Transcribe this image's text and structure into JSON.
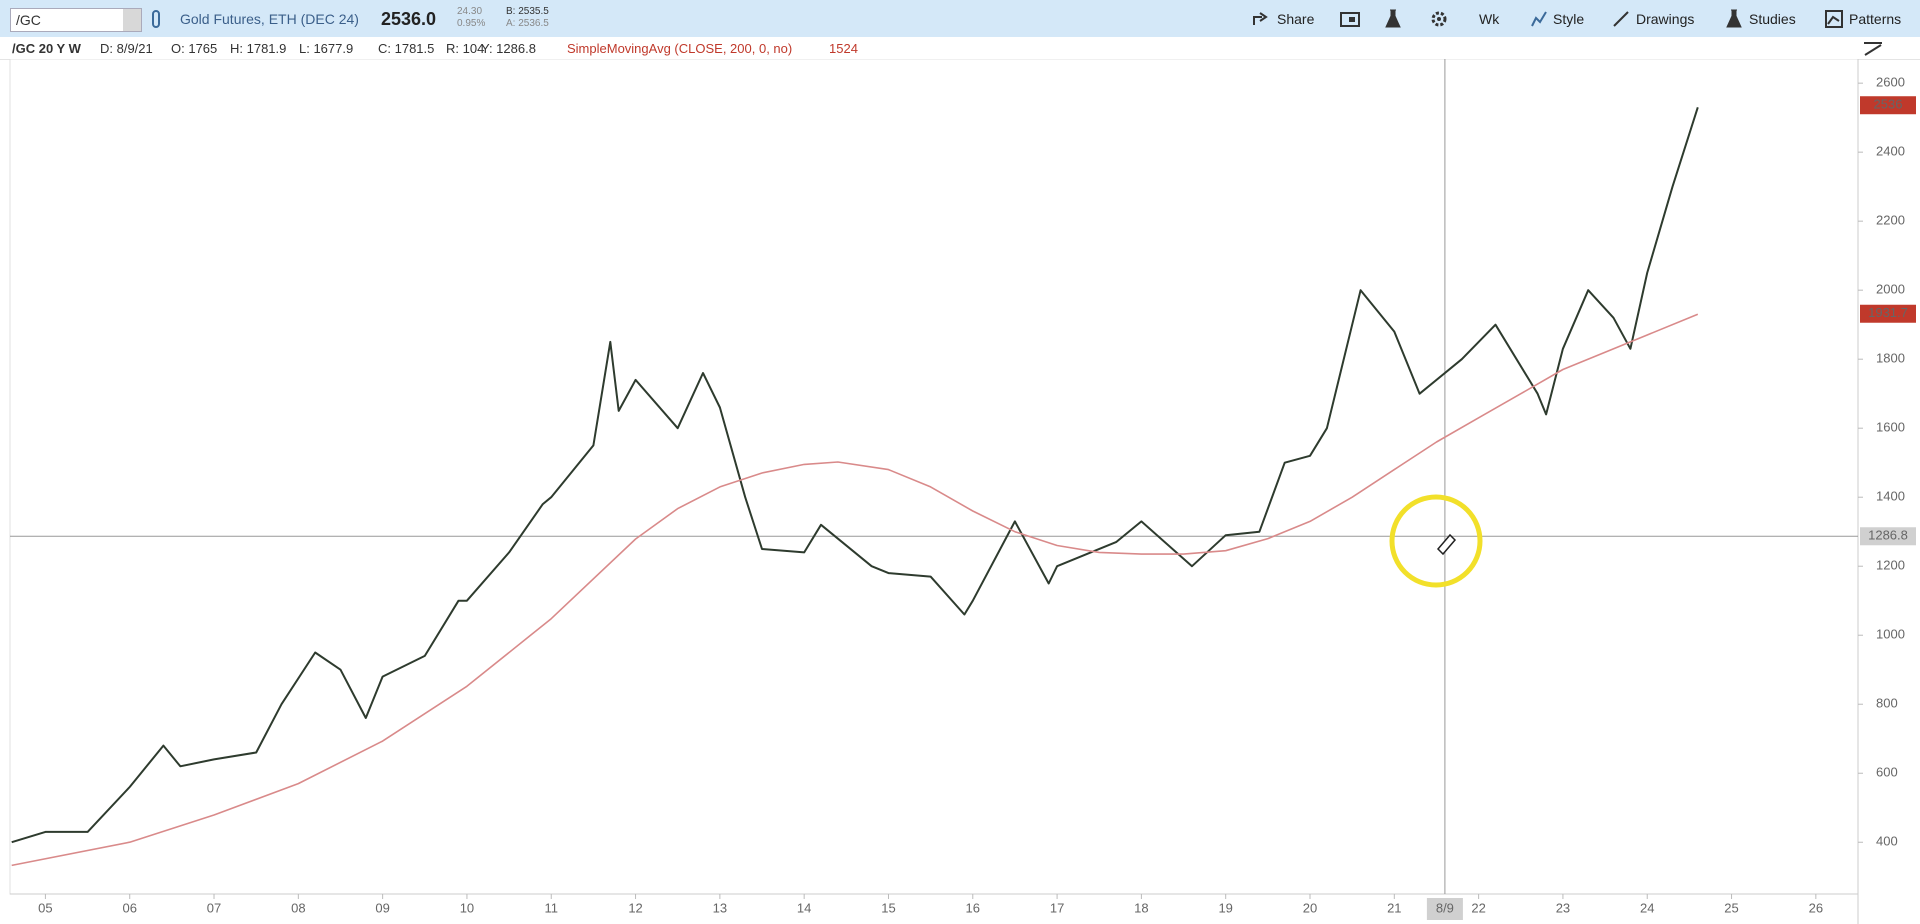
{
  "toolbar": {
    "symbol": "/GC",
    "description": "Gold Futures, ETH (DEC 24)",
    "last": "2536.0",
    "change": "24.30",
    "change_pct": "0.95%",
    "bid": "B: 2535.5",
    "ask": "A: 2536.5",
    "buttons": [
      "Share",
      "Wk",
      "Style",
      "Drawings",
      "Studies",
      "Patterns"
    ]
  },
  "info": {
    "chart": "/GC 20 Y W",
    "date": "D: 8/9/21",
    "open": "O: 1765",
    "high": "H: 1781.9",
    "low": "L: 1677.9",
    "close": "C: 1781.5",
    "range": "R: 104",
    "y": "Y: 1286.8",
    "study": "SimpleMovingAvg (CLOSE, 200, 0, no)",
    "study_value": "1524"
  },
  "chart_data": {
    "type": "line",
    "xlim": [
      4.58,
      26.5
    ],
    "ylim": [
      250,
      2670
    ],
    "xticks": [
      {
        "value": 5,
        "label": "05"
      },
      {
        "value": 6,
        "label": "06"
      },
      {
        "value": 7,
        "label": "07"
      },
      {
        "value": 8,
        "label": "08"
      },
      {
        "value": 9,
        "label": "09"
      },
      {
        "value": 10,
        "label": "10"
      },
      {
        "value": 11,
        "label": "11"
      },
      {
        "value": 12,
        "label": "12"
      },
      {
        "value": 13,
        "label": "13"
      },
      {
        "value": 14,
        "label": "14"
      },
      {
        "value": 15,
        "label": "15"
      },
      {
        "value": 16,
        "label": "16"
      },
      {
        "value": 17,
        "label": "17"
      },
      {
        "value": 18,
        "label": "18"
      },
      {
        "value": 19,
        "label": "19"
      },
      {
        "value": 20,
        "label": "20"
      },
      {
        "value": 21,
        "label": "21"
      },
      {
        "value": 22,
        "label": "22"
      },
      {
        "value": 23,
        "label": "23"
      },
      {
        "value": 24,
        "label": "24"
      },
      {
        "value": 25,
        "label": "25"
      },
      {
        "value": 26,
        "label": "26"
      }
    ],
    "yticks": [
      400,
      600,
      800,
      1000,
      1200,
      1400,
      1600,
      1800,
      2000,
      2200,
      2400,
      2600
    ],
    "grid": false,
    "series": [
      {
        "color": "#2e3b2e",
        "x": [
          4.6,
          5.0,
          5.5,
          6.0,
          6.4,
          6.6,
          7.0,
          7.5,
          7.8,
          8.2,
          8.5,
          8.8,
          9.0,
          9.5,
          9.9,
          10.0,
          10.5,
          10.9,
          11.0,
          11.5,
          11.7,
          11.8,
          12.0,
          12.5,
          12.8,
          13.0,
          13.3,
          13.5,
          14.0,
          14.2,
          14.8,
          15.0,
          15.5,
          15.9,
          16.0,
          16.5,
          16.9,
          17.0,
          17.7,
          18.0,
          18.6,
          19.0,
          19.4,
          19.7,
          20.0,
          20.2,
          20.6,
          21.0,
          21.3,
          21.8,
          22.2,
          22.7,
          22.8,
          23.0,
          23.3,
          23.6,
          23.8,
          24.0,
          24.3,
          24.6
        ],
        "values": [
          400,
          430,
          430,
          560,
          680,
          620,
          640,
          660,
          800,
          950,
          900,
          760,
          880,
          940,
          1100,
          1100,
          1240,
          1380,
          1400,
          1550,
          1850,
          1650,
          1740,
          1600,
          1760,
          1660,
          1400,
          1250,
          1240,
          1320,
          1200,
          1180,
          1170,
          1060,
          1100,
          1330,
          1150,
          1200,
          1270,
          1330,
          1200,
          1290,
          1300,
          1500,
          1520,
          1600,
          2000,
          1880,
          1700,
          1800,
          1900,
          1700,
          1640,
          1830,
          2000,
          1920,
          1830,
          2050,
          2300,
          2530
        ]
      },
      {
        "color": "#d98a8a",
        "x": [
          4.6,
          6,
          7,
          8,
          9,
          10,
          11,
          12,
          12.5,
          13,
          13.5,
          14,
          14.4,
          15,
          15.5,
          16,
          16.5,
          17,
          17.5,
          18,
          18.5,
          19,
          19.5,
          20,
          20.5,
          21,
          21.5,
          22,
          22.5,
          23,
          23.5,
          24,
          24.6
        ],
        "values": [
          333,
          400,
          479,
          570,
          693,
          852,
          1048,
          1279,
          1367,
          1430,
          1470,
          1495,
          1502,
          1480,
          1430,
          1360,
          1300,
          1260,
          1240,
          1235,
          1235,
          1245,
          1280,
          1330,
          1400,
          1480,
          1560,
          1630,
          1700,
          1770,
          1820,
          1870,
          1930
        ]
      }
    ],
    "price_tags": [
      {
        "value": 2536,
        "color": "#c0392b"
      },
      {
        "value": 1931.7,
        "color": "#c0392b"
      },
      {
        "value": 1286.8,
        "color": "#d0d0d0"
      }
    ],
    "crosshair": {
      "x": {
        "value": 21.6,
        "label": "8/9"
      },
      "y": 1286.8
    }
  }
}
